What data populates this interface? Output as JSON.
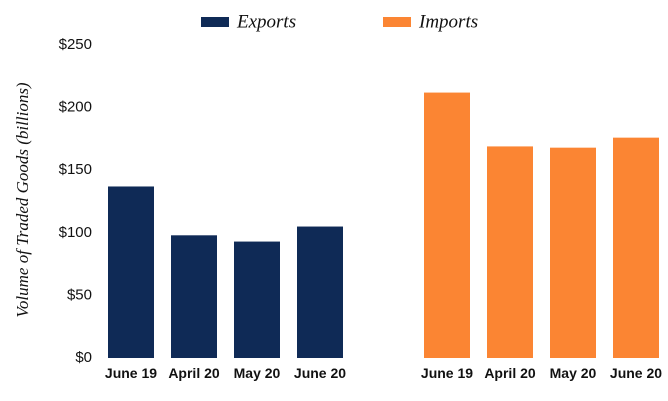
{
  "chart_data": {
    "type": "bar",
    "y_label": "Volume of Traded Goods (billions)",
    "categories": [
      "June 19",
      "April 20",
      "May 20",
      "June 20"
    ],
    "series": [
      {
        "name": "Exports",
        "color": "#0f2a56",
        "values": [
          137,
          98,
          93,
          105
        ]
      },
      {
        "name": "Imports",
        "color": "#fb8533",
        "values": [
          212,
          169,
          168,
          176
        ]
      }
    ],
    "ylim": [
      0,
      250
    ],
    "yticks": [
      {
        "value": 0,
        "label": "$0"
      },
      {
        "value": 50,
        "label": "$50"
      },
      {
        "value": 100,
        "label": "$100"
      },
      {
        "value": 150,
        "label": "$150"
      },
      {
        "value": 200,
        "label": "$200"
      },
      {
        "value": 250,
        "label": "$250"
      }
    ],
    "grid": false,
    "legend": "top"
  }
}
